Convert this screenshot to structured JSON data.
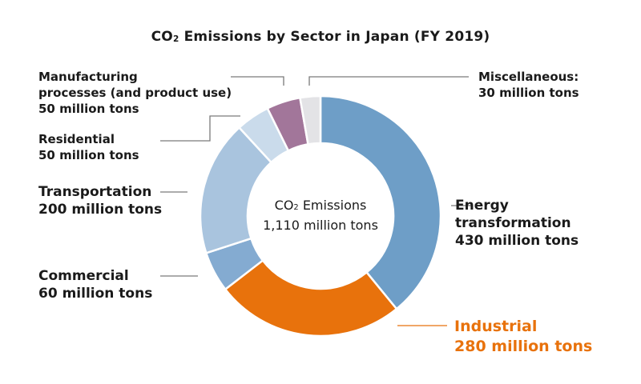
{
  "chart_data": {
    "type": "pie",
    "donut": true,
    "title": "CO₂ Emissions by Sector in Japan (FY 2019)",
    "center_label": {
      "line1": "CO₂ Emissions",
      "line2": "1,110 million tons"
    },
    "unit": "million tons",
    "total": 1110,
    "slices": [
      {
        "name": "Energy transformation",
        "value": 430,
        "label_lines": [
          "Energy",
          "transformation",
          "430 million tons"
        ],
        "color": "#6e9ec7"
      },
      {
        "name": "Industrial",
        "value": 280,
        "label_lines": [
          "Industrial",
          "280 million tons"
        ],
        "color": "#e8720c",
        "highlight": true
      },
      {
        "name": "Commercial",
        "value": 60,
        "label_lines": [
          "Commercial",
          "60 million tons"
        ],
        "color": "#84abd1"
      },
      {
        "name": "Transportation",
        "value": 200,
        "label_lines": [
          "Transportation",
          "200 million tons"
        ],
        "color": "#a9c4de"
      },
      {
        "name": "Residential",
        "value": 50,
        "label_lines": [
          "Residential",
          "50 million tons"
        ],
        "color": "#cadbeb"
      },
      {
        "name": "Manufacturing processes (and product use)",
        "value": 50,
        "label_lines": [
          "Manufacturing",
          "processes (and product use)",
          "50 million tons"
        ],
        "color": "#a2769a"
      },
      {
        "name": "Miscellaneous",
        "value": 30,
        "label_lines": [
          "Miscellaneous:",
          "30 million tons"
        ],
        "color": "#e3e3e6"
      }
    ]
  }
}
